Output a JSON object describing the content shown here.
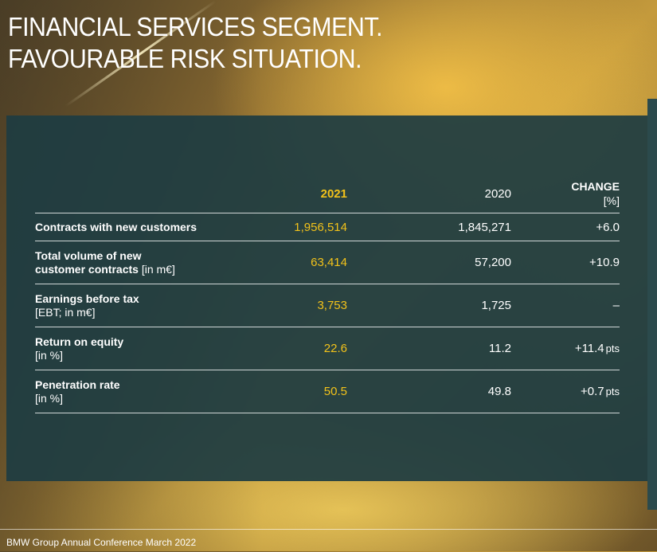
{
  "title": {
    "line1": "FINANCIAL SERVICES SEGMENT.",
    "line2": "FAVOURABLE RISK SITUATION."
  },
  "table": {
    "headers": {
      "y2021": "2021",
      "y2020": "2020",
      "change_label": "CHANGE",
      "change_unit": "[%]"
    },
    "rows": [
      {
        "label_main": "Contracts with new customers",
        "y2021": "1,956,514",
        "y2020": "1,845,271",
        "change": "+6.0",
        "change_unit": ""
      },
      {
        "label_main": "Total volume of new",
        "label_line2": "customer contracts",
        "label_unit": "[in m€]",
        "y2021": "63,414",
        "y2020": "57,200",
        "change": "+10.9",
        "change_unit": ""
      },
      {
        "label_main": "Earnings before tax",
        "label_sub": "[EBT; in m€]",
        "y2021": "3,753",
        "y2020": "1,725",
        "change": "–",
        "change_unit": ""
      },
      {
        "label_main": "Return on equity",
        "label_sub": "[in %]",
        "y2021": "22.6",
        "y2020": "11.2",
        "change": "+11.4",
        "change_unit": "pts"
      },
      {
        "label_main": "Penetration rate",
        "label_sub": "[in %]",
        "y2021": "50.5",
        "y2020": "49.8",
        "change": "+0.7",
        "change_unit": "pts"
      }
    ]
  },
  "footer": {
    "text": "BMW Group Annual Conference March 2022"
  },
  "colors": {
    "accent": "#f2c21a",
    "panel": "#1e3c42",
    "text": "#ffffff"
  }
}
